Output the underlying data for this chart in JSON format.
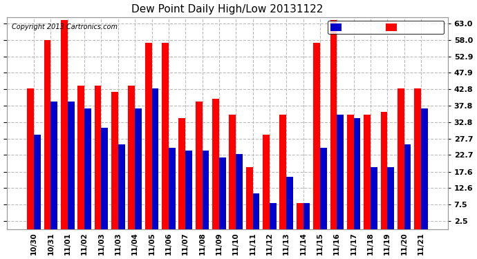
{
  "title": "Dew Point Daily High/Low 20131122",
  "copyright": "Copyright 2013 Cartronics.com",
  "xlabels": [
    "10/30",
    "10/31",
    "11/01",
    "11/02",
    "11/03",
    "11/03",
    "11/04",
    "11/05",
    "11/06",
    "11/07",
    "11/08",
    "11/09",
    "11/10",
    "11/11",
    "11/12",
    "11/13",
    "11/14",
    "11/15",
    "11/16",
    "11/17",
    "11/18",
    "11/19",
    "11/20",
    "11/21"
  ],
  "high": [
    43,
    58,
    64,
    44,
    44,
    42,
    44,
    57,
    57,
    34,
    39,
    40,
    35,
    19,
    29,
    35,
    8,
    57,
    64,
    35,
    35,
    36,
    43,
    43
  ],
  "low": [
    29,
    39,
    39,
    37,
    31,
    26,
    37,
    43,
    25,
    24,
    24,
    22,
    23,
    11,
    8,
    16,
    8,
    25,
    35,
    34,
    19,
    19,
    26,
    37
  ],
  "high_color": "#ff0000",
  "low_color": "#0000cc",
  "bg_color": "#ffffff",
  "grid_color": "#bbbbbb",
  "yticks": [
    2.5,
    7.5,
    12.6,
    17.6,
    22.7,
    27.7,
    32.8,
    37.8,
    42.8,
    47.9,
    52.9,
    58.0,
    63.0
  ],
  "ylim": [
    0,
    65
  ],
  "bar_width": 0.4
}
